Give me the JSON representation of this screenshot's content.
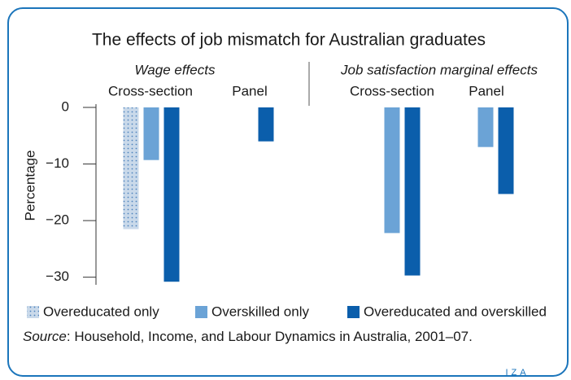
{
  "chart_data": {
    "type": "bar",
    "title": "The effects of job mismatch for Australian graduates",
    "groups": [
      "Wage effects",
      "Job satisfaction marginal effects"
    ],
    "categories": [
      "Cross-section",
      "Panel",
      "Cross-section",
      "Panel"
    ],
    "series": [
      {
        "name": "Overeducated only",
        "color": "#c9d9ea",
        "pattern": "dots",
        "values": [
          -21.5,
          null,
          null,
          null
        ]
      },
      {
        "name": "Overskilled only",
        "color": "#6ba3d6",
        "values": [
          -9.3,
          null,
          -22.2,
          -7
        ]
      },
      {
        "name": "Overeducated and overskilled",
        "color": "#0b5eab",
        "values": [
          -30.8,
          -6,
          -29.7,
          -15.3
        ]
      }
    ],
    "ylabel": "Percentage",
    "ylim": [
      -31.2,
      0
    ],
    "yticks": [
      0,
      {
        "value": -10,
        "label": "−10"
      },
      {
        "value": -20,
        "label": "−20"
      },
      {
        "value": -30,
        "label": "−30"
      }
    ],
    "source_label": "Source",
    "source_text": ": Household, Income, and Labour Dynamics in Australia, 2001–07.",
    "logo": "IZA"
  }
}
